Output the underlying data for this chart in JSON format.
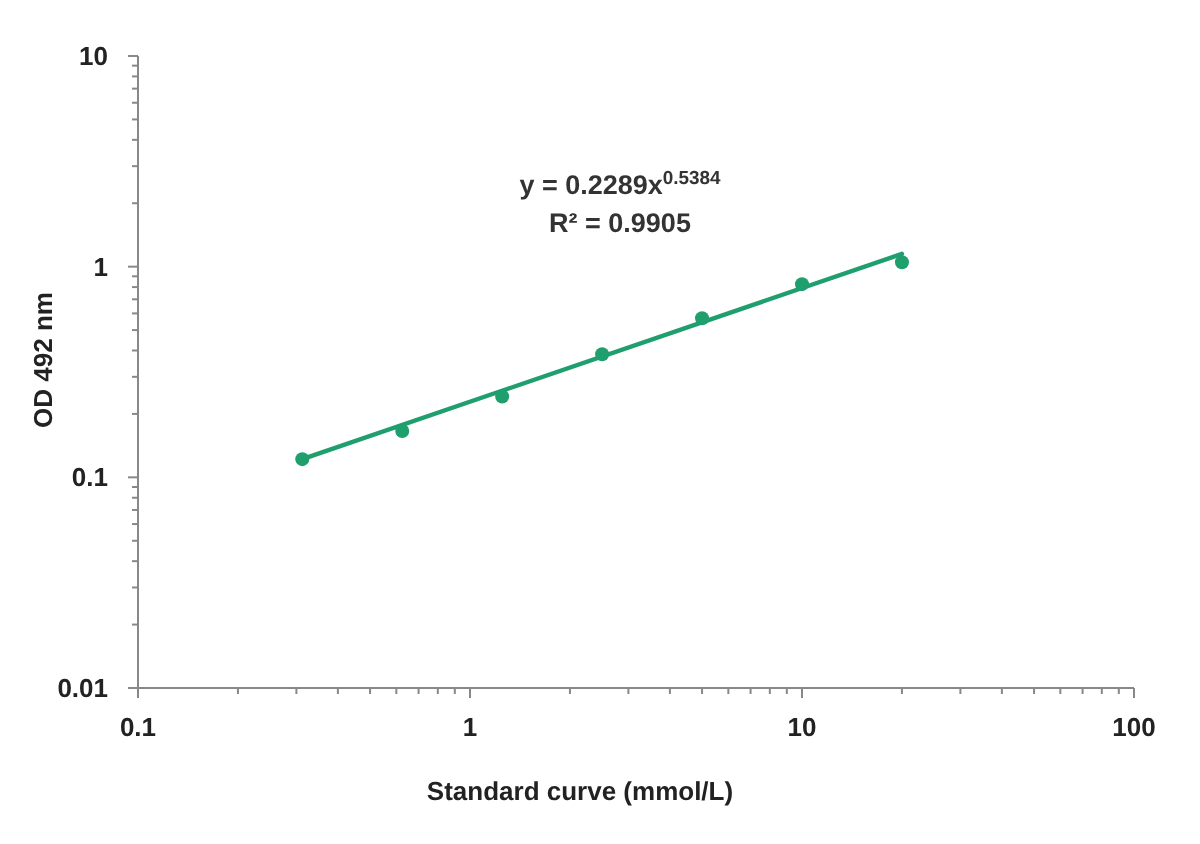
{
  "chart_data": {
    "type": "scatter",
    "xlabel": "Standard curve (mmol/L)",
    "ylabel": "OD 492 nm",
    "annotations": [
      "y = 0.2289x$^{0.5384}$",
      "R² = 0.9905"
    ],
    "log": "xy",
    "xlim": [
      0.1,
      100
    ],
    "ylim": [
      0.01,
      10
    ],
    "xticks": [
      0.1,
      {
        "value": 0.2,
        "label": null
      },
      {
        "value": 0.3,
        "label": null
      },
      {
        "value": 0.4,
        "label": null
      },
      {
        "value": 0.5,
        "label": null
      },
      {
        "value": 0.6,
        "label": null
      },
      {
        "value": 0.7,
        "label": null
      },
      {
        "value": 0.8,
        "label": null
      },
      {
        "value": 0.9,
        "label": null
      },
      1,
      {
        "value": 2,
        "label": null
      },
      {
        "value": 3,
        "label": null
      },
      {
        "value": 4,
        "label": null
      },
      {
        "value": 5,
        "label": null
      },
      {
        "value": 6,
        "label": null
      },
      {
        "value": 7,
        "label": null
      },
      {
        "value": 8,
        "label": null
      },
      {
        "value": 9,
        "label": null
      },
      10,
      {
        "value": 20,
        "label": null
      },
      {
        "value": 30,
        "label": null
      },
      {
        "value": 40,
        "label": null
      },
      {
        "value": 50,
        "label": null
      },
      {
        "value": 60,
        "label": null
      },
      {
        "value": 70,
        "label": null
      },
      {
        "value": 80,
        "label": null
      },
      {
        "value": 90,
        "label": null
      },
      100
    ],
    "yticks": [
      0.01,
      {
        "value": 0.02,
        "label": null
      },
      {
        "value": 0.03,
        "label": null
      },
      {
        "value": 0.04,
        "label": null
      },
      {
        "value": 0.05,
        "label": null
      },
      {
        "value": 0.06,
        "label": null
      },
      {
        "value": 0.07,
        "label": null
      },
      {
        "value": 0.08,
        "label": null
      },
      {
        "value": 0.09,
        "label": null
      },
      0.1,
      {
        "value": 0.2,
        "label": null
      },
      {
        "value": 0.3,
        "label": null
      },
      {
        "value": 0.4,
        "label": null
      },
      {
        "value": 0.5,
        "label": null
      },
      {
        "value": 0.6,
        "label": null
      },
      {
        "value": 0.7,
        "label": null
      },
      {
        "value": 0.8,
        "label": null
      },
      {
        "value": 0.9,
        "label": null
      },
      1,
      {
        "value": 2,
        "label": null
      },
      {
        "value": 3,
        "label": null
      },
      {
        "value": 4,
        "label": null
      },
      {
        "value": 5,
        "label": null
      },
      {
        "value": 6,
        "label": null
      },
      {
        "value": 7,
        "label": null
      },
      {
        "value": 8,
        "label": null
      },
      {
        "value": 9,
        "label": null
      },
      10
    ],
    "marker": "circle",
    "series": [
      {
        "color": "#1f9e6e",
        "x": [
          0.3125,
          0.625,
          1.25,
          2.5,
          5,
          10,
          20
        ],
        "values": [
          0.122,
          0.166,
          0.242,
          0.384,
          0.569,
          0.826,
          1.05
        ]
      },
      {
        "type": "line",
        "marker": "none",
        "line_style": "solid",
        "color": "#1f9e6e",
        "x": [
          0.3125,
          20
        ],
        "values": [
          0.122,
          1.15
        ]
      }
    ]
  }
}
